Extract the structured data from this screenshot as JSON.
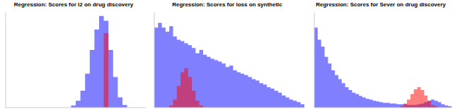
{
  "chart_data": [
    {
      "type": "histogram",
      "title": "Regression: Scores for l2 on drug discovery",
      "bins": [
        0,
        1,
        2,
        3,
        4,
        5,
        6,
        7,
        8,
        9,
        10,
        11,
        12,
        13,
        14,
        15,
        16,
        17,
        18,
        19,
        20,
        21,
        22,
        23,
        24,
        25,
        26,
        27,
        28,
        29,
        30
      ],
      "series": [
        {
          "color": "#8080ff",
          "values": [
            0,
            0,
            0,
            0,
            0,
            0,
            0,
            0,
            0,
            0,
            0,
            0,
            0,
            0,
            3,
            10,
            25,
            50,
            85,
            115,
            135,
            128,
            85,
            45,
            15,
            4,
            0,
            0,
            0,
            0
          ]
        },
        {
          "color": "#ff0000",
          "values": [
            0,
            0,
            0,
            0,
            0,
            0,
            0,
            0,
            0,
            0,
            0,
            0,
            0,
            0,
            0,
            0,
            0,
            0,
            0,
            0,
            0,
            110,
            0,
            0,
            0,
            0,
            0,
            0,
            0,
            0
          ]
        }
      ],
      "xlim": [
        0,
        30
      ],
      "ylim": [
        0,
        140
      ],
      "tick_labels": false
    },
    {
      "type": "histogram",
      "title": "Regression: Scores for loss on synthetic",
      "bins": [
        0,
        1,
        2,
        3,
        4,
        5,
        6,
        7,
        8,
        9,
        10,
        11,
        12,
        13,
        14,
        15,
        16,
        17,
        18,
        19,
        20,
        21,
        22,
        23,
        24,
        25,
        26,
        27,
        28,
        29,
        30,
        31,
        32,
        33,
        34,
        35,
        36,
        37,
        38,
        39,
        40
      ],
      "series": [
        {
          "color": "#8080ff",
          "values": [
            118,
            125,
            118,
            112,
            120,
            105,
            100,
            98,
            95,
            92,
            88,
            80,
            85,
            78,
            75,
            72,
            70,
            68,
            65,
            60,
            62,
            55,
            52,
            50,
            48,
            45,
            42,
            40,
            36,
            34,
            30,
            28,
            25,
            22,
            18,
            15,
            12,
            10,
            8,
            5
          ]
        },
        {
          "color": "#ff0000",
          "values": [
            0,
            0,
            0,
            0,
            3,
            12,
            32,
            52,
            58,
            45,
            25,
            10,
            3,
            0,
            0,
            0,
            0,
            0,
            0,
            0,
            0,
            0,
            0,
            0,
            0,
            0,
            0,
            0,
            0,
            0,
            0,
            0,
            0,
            0,
            0,
            0,
            0,
            0,
            0,
            0
          ]
        }
      ],
      "xlim": [
        0,
        40
      ],
      "ylim": [
        0,
        140
      ],
      "tick_labels": false
    },
    {
      "type": "histogram",
      "title": "Regression: Scores for Sever on drug discovery",
      "bins": [
        0,
        1,
        2,
        3,
        4,
        5,
        6,
        7,
        8,
        9,
        10,
        11,
        12,
        13,
        14,
        15,
        16,
        17,
        18,
        19,
        20,
        21,
        22,
        23,
        24,
        25,
        26,
        27,
        28,
        29,
        30,
        31,
        32,
        33,
        34,
        35,
        36,
        37,
        38,
        39,
        40
      ],
      "series": [
        {
          "color": "#8080ff",
          "values": [
            118,
            100,
            90,
            75,
            65,
            55,
            48,
            42,
            36,
            30,
            26,
            22,
            20,
            17,
            15,
            13,
            12,
            10,
            9,
            8,
            7,
            7,
            6,
            6,
            5,
            5,
            5,
            4,
            4,
            4,
            5,
            6,
            8,
            10,
            12,
            10,
            8,
            5,
            3,
            2
          ]
        },
        {
          "color": "#ff0000",
          "values": [
            0,
            0,
            0,
            0,
            0,
            0,
            0,
            0,
            0,
            0,
            0,
            0,
            0,
            0,
            0,
            0,
            0,
            0,
            0,
            0,
            0,
            0,
            0,
            0,
            0,
            2,
            6,
            12,
            20,
            27,
            30,
            26,
            18,
            10,
            4,
            2,
            0,
            0,
            0,
            0
          ]
        }
      ],
      "xlim": [
        0,
        40
      ],
      "ylim": [
        0,
        140
      ],
      "tick_labels": false
    }
  ]
}
